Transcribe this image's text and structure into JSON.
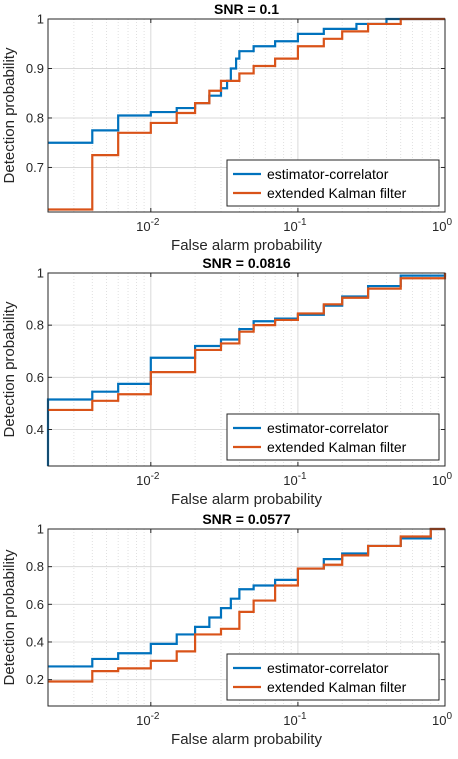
{
  "colors": {
    "series1": "#0072BD",
    "series2": "#D95319",
    "grid": "#d9d9d9",
    "axis": "#262626"
  },
  "chart_data": [
    {
      "type": "line",
      "title": "SNR = 0.1",
      "xlabel": "False alarm probability",
      "ylabel": "Detection probability",
      "xscale": "log",
      "xlim": [
        0.002,
        1
      ],
      "ylim": [
        0.61,
        1
      ],
      "yticks": [
        0.7,
        0.8,
        0.9,
        1
      ],
      "ytick_labels": [
        "0.7",
        "0.8",
        "0.9",
        "1"
      ],
      "xticks": [
        0.01,
        0.1,
        1
      ],
      "xtick_labels": [
        "10",
        "10",
        "10"
      ],
      "xtick_exps": [
        "-2",
        "-1",
        "0"
      ],
      "grid": true,
      "legend_position": "bottom-right",
      "series": [
        {
          "name": "estimator-correlator",
          "x": [
            0.002,
            0.004,
            0.004,
            0.006,
            0.006,
            0.01,
            0.01,
            0.015,
            0.02,
            0.025,
            0.03,
            0.033,
            0.035,
            0.038,
            0.04,
            0.05,
            0.07,
            0.1,
            0.15,
            0.25,
            0.4,
            1
          ],
          "y": [
            0.75,
            0.755,
            0.775,
            0.778,
            0.805,
            0.808,
            0.812,
            0.82,
            0.83,
            0.845,
            0.86,
            0.875,
            0.9,
            0.92,
            0.935,
            0.945,
            0.955,
            0.97,
            0.98,
            0.99,
            1.0,
            1.0
          ]
        },
        {
          "name": "extended Kalman filter",
          "x": [
            0.002,
            0.004,
            0.004,
            0.006,
            0.006,
            0.01,
            0.01,
            0.015,
            0.02,
            0.025,
            0.03,
            0.04,
            0.05,
            0.07,
            0.1,
            0.15,
            0.2,
            0.3,
            0.5,
            1
          ],
          "y": [
            0.615,
            0.62,
            0.725,
            0.73,
            0.77,
            0.775,
            0.79,
            0.81,
            0.83,
            0.855,
            0.875,
            0.89,
            0.905,
            0.92,
            0.945,
            0.96,
            0.975,
            0.99,
            1.0,
            1.0
          ]
        }
      ]
    },
    {
      "type": "line",
      "title": "SNR = 0.0816",
      "xlabel": "False alarm probability",
      "ylabel": "Detection probability",
      "xscale": "log",
      "xlim": [
        0.002,
        1
      ],
      "ylim": [
        0.26,
        1
      ],
      "yticks": [
        0.4,
        0.6,
        0.8,
        1
      ],
      "ytick_labels": [
        "0.4",
        "0.6",
        "0.8",
        "1"
      ],
      "xticks": [
        0.01,
        0.1,
        1
      ],
      "xtick_labels": [
        "10",
        "10",
        "10"
      ],
      "xtick_exps": [
        "-2",
        "-1",
        "0"
      ],
      "grid": true,
      "legend_position": "bottom-right",
      "series": [
        {
          "name": "estimator-correlator",
          "x": [
            0.002,
            0.002,
            0.004,
            0.004,
            0.006,
            0.006,
            0.01,
            0.01,
            0.02,
            0.02,
            0.03,
            0.04,
            0.05,
            0.07,
            0.1,
            0.15,
            0.2,
            0.3,
            0.5,
            1
          ],
          "y": [
            0.26,
            0.515,
            0.53,
            0.545,
            0.56,
            0.575,
            0.58,
            0.675,
            0.69,
            0.72,
            0.745,
            0.785,
            0.815,
            0.825,
            0.84,
            0.875,
            0.91,
            0.95,
            0.99,
            1.0
          ]
        },
        {
          "name": "extended Kalman filter",
          "x": [
            0.002,
            0.004,
            0.004,
            0.006,
            0.006,
            0.01,
            0.01,
            0.02,
            0.02,
            0.03,
            0.04,
            0.05,
            0.07,
            0.1,
            0.15,
            0.2,
            0.3,
            0.5,
            1
          ],
          "y": [
            0.475,
            0.48,
            0.51,
            0.515,
            0.535,
            0.55,
            0.62,
            0.64,
            0.705,
            0.73,
            0.775,
            0.8,
            0.82,
            0.845,
            0.88,
            0.905,
            0.94,
            0.98,
            1.0
          ]
        }
      ]
    },
    {
      "type": "line",
      "title": "SNR = 0.0577",
      "xlabel": "False alarm probability",
      "ylabel": "Detection probability",
      "xscale": "log",
      "xlim": [
        0.002,
        1
      ],
      "ylim": [
        0.06,
        1
      ],
      "yticks": [
        0.2,
        0.4,
        0.6,
        0.8,
        1
      ],
      "ytick_labels": [
        "0.2",
        "0.4",
        "0.6",
        "0.8",
        "1"
      ],
      "xticks": [
        0.01,
        0.1,
        1
      ],
      "xtick_labels": [
        "10",
        "10",
        "10"
      ],
      "xtick_exps": [
        "-2",
        "-1",
        "0"
      ],
      "grid": true,
      "legend_position": "bottom-right",
      "series": [
        {
          "name": "estimator-correlator",
          "x": [
            0.002,
            0.004,
            0.004,
            0.006,
            0.01,
            0.015,
            0.02,
            0.025,
            0.03,
            0.035,
            0.04,
            0.05,
            0.07,
            0.1,
            0.15,
            0.2,
            0.3,
            0.5,
            0.8,
            1
          ],
          "y": [
            0.27,
            0.275,
            0.31,
            0.34,
            0.39,
            0.44,
            0.48,
            0.53,
            0.58,
            0.63,
            0.68,
            0.7,
            0.73,
            0.79,
            0.84,
            0.87,
            0.91,
            0.95,
            1.0,
            1.0
          ]
        },
        {
          "name": "extended Kalman filter",
          "x": [
            0.002,
            0.004,
            0.004,
            0.006,
            0.01,
            0.015,
            0.02,
            0.02,
            0.03,
            0.04,
            0.05,
            0.07,
            0.1,
            0.15,
            0.2,
            0.3,
            0.5,
            0.8,
            1
          ],
          "y": [
            0.19,
            0.195,
            0.245,
            0.26,
            0.3,
            0.35,
            0.38,
            0.44,
            0.47,
            0.56,
            0.62,
            0.7,
            0.79,
            0.81,
            0.86,
            0.91,
            0.96,
            1.0,
            1.0
          ]
        }
      ]
    }
  ]
}
